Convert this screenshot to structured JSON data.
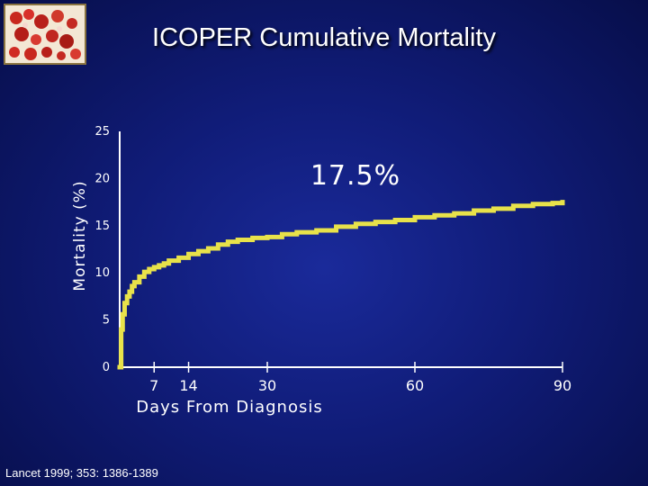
{
  "slide": {
    "title": "ICOPER  Cumulative Mortality",
    "source": "Lancet 1999; 353: 1386-1389"
  },
  "logo": {
    "icon": "blood-cells-logo-icon"
  },
  "colors": {
    "background": "#101c78",
    "line": "#e8e24a",
    "axis": "#ffffff",
    "text": "#ffffff"
  },
  "chart_data": {
    "type": "line",
    "title": "",
    "xlabel": "Days From Diagnosis",
    "ylabel": "Mortality (%)",
    "xlim": [
      0,
      90
    ],
    "ylim": [
      0,
      25
    ],
    "x_ticks": [
      7,
      14,
      30,
      60,
      90
    ],
    "y_ticks": [
      0,
      5,
      10,
      15,
      20,
      25
    ],
    "grid": false,
    "annotation": "17.5%",
    "series": [
      {
        "step": true,
        "x": [
          0,
          0.3,
          0.6,
          1,
          1.5,
          2,
          2.5,
          3,
          4,
          5,
          6,
          7,
          8,
          9,
          10,
          12,
          14,
          16,
          18,
          20,
          22,
          24,
          27,
          30,
          33,
          36,
          40,
          44,
          48,
          52,
          56,
          60,
          64,
          68,
          72,
          76,
          80,
          84,
          88,
          90
        ],
        "y": [
          0,
          4.0,
          5.6,
          6.8,
          7.5,
          8.0,
          8.6,
          9.0,
          9.6,
          10.1,
          10.4,
          10.6,
          10.8,
          11.0,
          11.3,
          11.6,
          12.0,
          12.3,
          12.6,
          13.0,
          13.3,
          13.5,
          13.7,
          13.8,
          14.1,
          14.3,
          14.5,
          14.9,
          15.2,
          15.4,
          15.6,
          15.9,
          16.1,
          16.3,
          16.6,
          16.8,
          17.1,
          17.3,
          17.4,
          17.5
        ]
      }
    ]
  }
}
